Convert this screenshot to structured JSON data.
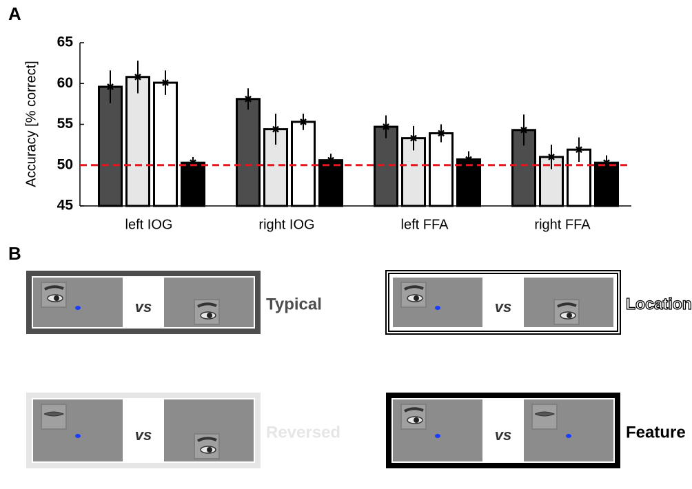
{
  "panel_a": {
    "label": "A"
  },
  "chart_data": {
    "type": "bar",
    "y_label": "Accuracy [% correct]",
    "categories": [
      "left IOG",
      "right IOG",
      "left FFA",
      "right FFA"
    ],
    "series": [
      {
        "name": "Typical",
        "color": "#4d4d4d",
        "values": [
          59.6,
          58.1,
          54.7,
          54.3
        ],
        "errors": [
          2.0,
          1.3,
          1.4,
          1.9
        ]
      },
      {
        "name": "Reversed",
        "color": "#e6e6e6",
        "values": [
          60.8,
          54.4,
          53.3,
          51.0
        ],
        "errors": [
          2.0,
          1.9,
          1.5,
          1.5
        ]
      },
      {
        "name": "Location",
        "color": "#ffffff",
        "values": [
          60.1,
          55.3,
          53.9,
          51.9
        ],
        "errors": [
          1.5,
          1.0,
          1.1,
          1.5
        ]
      },
      {
        "name": "Feature",
        "color": "#000000",
        "values": [
          50.3,
          50.6,
          50.7,
          50.3
        ],
        "errors": [
          0.7,
          0.8,
          1.0,
          0.9
        ]
      }
    ],
    "ylim": [
      45,
      65
    ],
    "yticks": [
      45,
      50,
      55,
      60,
      65
    ],
    "reference_line": {
      "value": 50,
      "color": "#e8141c"
    }
  },
  "panel_b": {
    "label": "B",
    "separators": [
      "vs",
      "vs",
      "vs",
      "vs"
    ]
  }
}
